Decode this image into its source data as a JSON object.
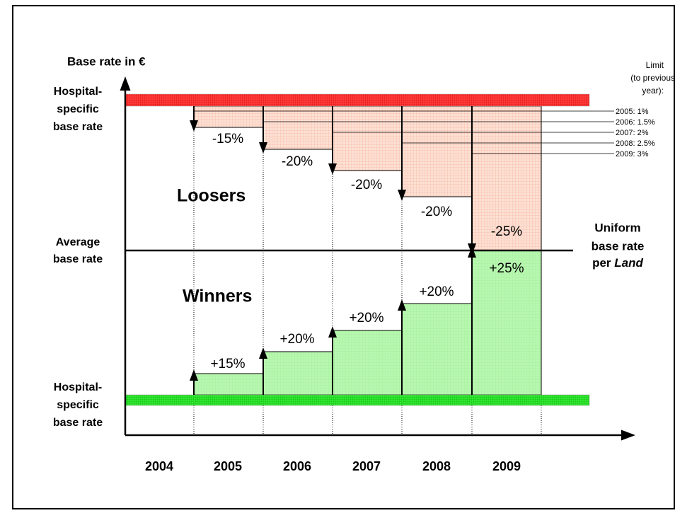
{
  "axis_label": "Base rate in €",
  "limit_header": [
    "Limit",
    "(to previous",
    "year):"
  ],
  "limits": [
    "2005: 1%",
    "2006: 1.5%",
    "2007: 2%",
    "2008: 2.5%",
    "2009: 3%"
  ],
  "top_label": [
    "Hospital-",
    "specific",
    "base rate"
  ],
  "middle_label": [
    "Average",
    "base rate"
  ],
  "bottom_label": [
    "Hospital-",
    "specific",
    "base rate"
  ],
  "right_label": [
    "Uniform",
    "base rate"
  ],
  "right_label_last": {
    "text": "per",
    "italic": "Land"
  },
  "losers_title": "Loosers",
  "winners_title": "Winners",
  "losers": [
    "-15%",
    "-20%",
    "-20%",
    "-20%",
    "-25%"
  ],
  "winners": [
    "+15%",
    "+20%",
    "+20%",
    "+20%",
    "+25%"
  ],
  "years": [
    "2004",
    "2005",
    "2006",
    "2007",
    "2008",
    "2009"
  ]
}
